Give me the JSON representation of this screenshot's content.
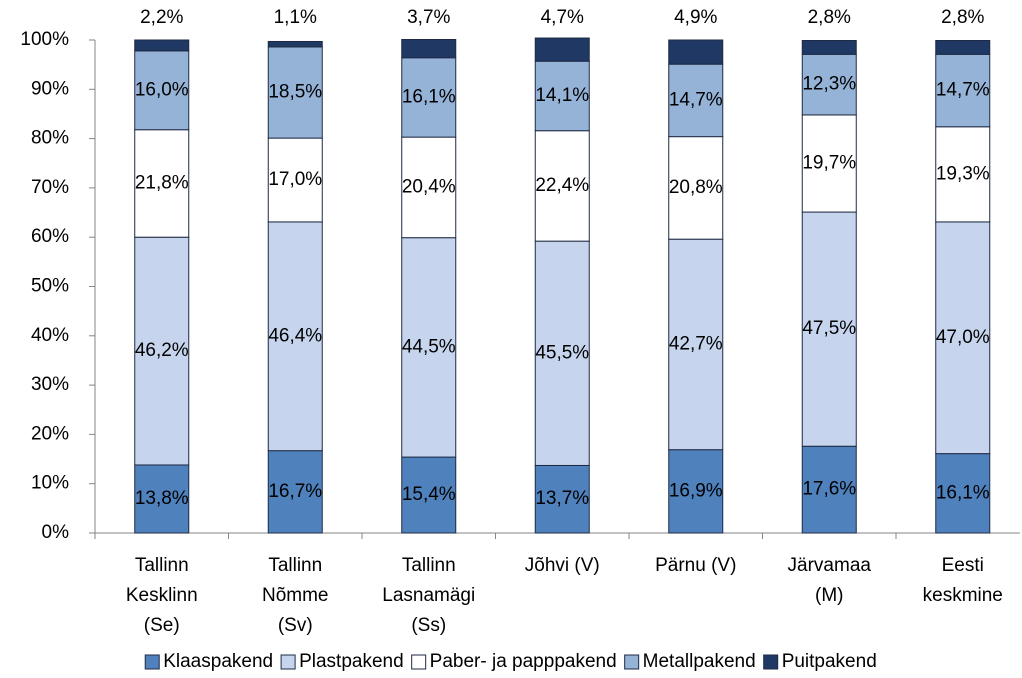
{
  "chart_data": {
    "type": "stacked-bar",
    "categories": [
      [
        "Tallinn",
        "Kesklinn",
        "(Se)"
      ],
      [
        "Tallinn",
        "Nõmme",
        "(Sv)"
      ],
      [
        "Tallinn",
        "Lasnamägi",
        "(Ss)"
      ],
      [
        "Jõhvi (V)"
      ],
      [
        "Pärnu (V)"
      ],
      [
        "Järvamaa",
        "(M)"
      ],
      [
        "Eesti",
        "keskmine"
      ]
    ],
    "series": [
      {
        "name": "Klaaspakend",
        "color": "#4f81bd",
        "values": [
          13.8,
          16.7,
          15.4,
          13.7,
          16.9,
          17.6,
          16.1
        ],
        "value_labels": [
          "13,8%",
          "16,7%",
          "15,4%",
          "13,7%",
          "16,9%",
          "17,6%",
          "16,1%"
        ]
      },
      {
        "name": "Plastpakend",
        "color": "#c6d5ed",
        "values": [
          46.2,
          46.4,
          44.5,
          45.5,
          42.7,
          47.5,
          47.0
        ],
        "value_labels": [
          "46,2%",
          "46,4%",
          "44,5%",
          "45,5%",
          "42,7%",
          "47,5%",
          "47,0%"
        ]
      },
      {
        "name": "Paber- ja papppakend",
        "color": "#ffffff",
        "values": [
          21.8,
          17.0,
          20.4,
          22.4,
          20.8,
          19.7,
          19.3
        ],
        "value_labels": [
          "21,8%",
          "17,0%",
          "20,4%",
          "22,4%",
          "20,8%",
          "19,7%",
          "19,3%"
        ]
      },
      {
        "name": "Metallpakend",
        "color": "#95b3d7",
        "values": [
          16.0,
          18.5,
          16.1,
          14.1,
          14.7,
          12.3,
          14.7
        ],
        "value_labels": [
          "16,0%",
          "18,5%",
          "16,1%",
          "14,1%",
          "14,7%",
          "12,3%",
          "14,7%"
        ]
      },
      {
        "name": "Puitpakend",
        "color": "#1f3864",
        "values": [
          2.2,
          1.1,
          3.7,
          4.7,
          4.9,
          2.8,
          2.8
        ],
        "value_labels": [
          "2,2%",
          "1,1%",
          "3,7%",
          "4,7%",
          "4,9%",
          "2,8%",
          "2,8%"
        ]
      }
    ],
    "ylim": [
      0,
      100
    ],
    "yticks": [
      {
        "value": 0,
        "label": "0%"
      },
      {
        "value": 10,
        "label": "10%"
      },
      {
        "value": 20,
        "label": "20%"
      },
      {
        "value": 30,
        "label": "30%"
      },
      {
        "value": 40,
        "label": "40%"
      },
      {
        "value": 50,
        "label": "50%"
      },
      {
        "value": 60,
        "label": "60%"
      },
      {
        "value": 70,
        "label": "70%"
      },
      {
        "value": 80,
        "label": "80%"
      },
      {
        "value": 90,
        "label": "90%"
      },
      {
        "value": 100,
        "label": "100%"
      }
    ],
    "grid": false,
    "legend": "bottom"
  }
}
